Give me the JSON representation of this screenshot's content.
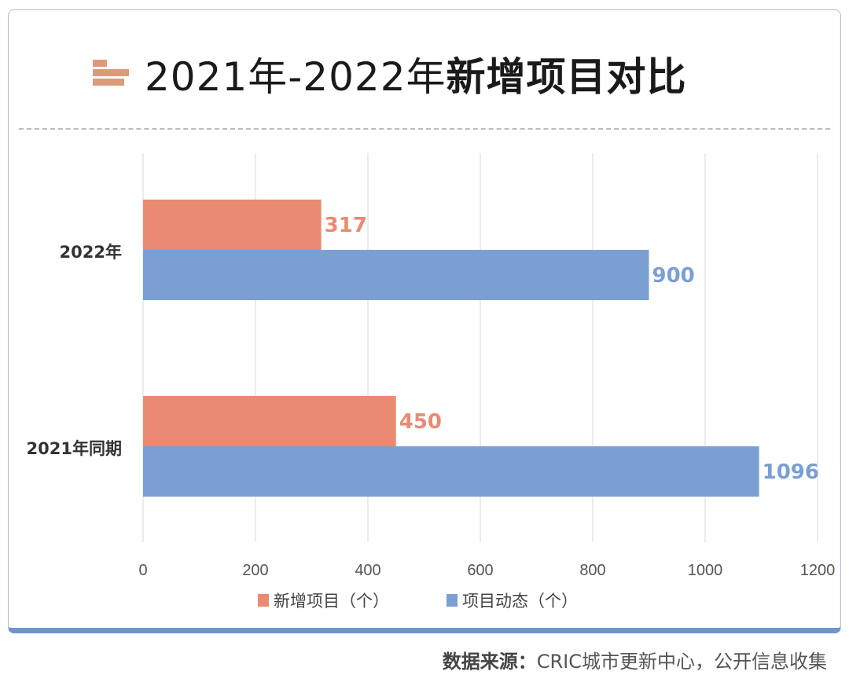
{
  "title": {
    "prefix": "2021年-2022年",
    "bold": "新增项目对比"
  },
  "chart_data": {
    "type": "bar",
    "orientation": "horizontal",
    "categories": [
      "2022年",
      "2021年同期"
    ],
    "series": [
      {
        "name": "新增项目（个）",
        "values": [
          317,
          450
        ],
        "color": "#ea8a72"
      },
      {
        "name": "项目动态（个）",
        "values": [
          900,
          1096
        ],
        "color": "#7a9fd3"
      }
    ],
    "xlim": [
      0,
      1200
    ],
    "xticks": [
      0,
      200,
      400,
      600,
      800,
      1000,
      1200
    ],
    "grid": true,
    "legend": "bottom"
  },
  "source": {
    "label": "数据来源：",
    "text": "CRIC城市更新中心，公开信息收集"
  }
}
